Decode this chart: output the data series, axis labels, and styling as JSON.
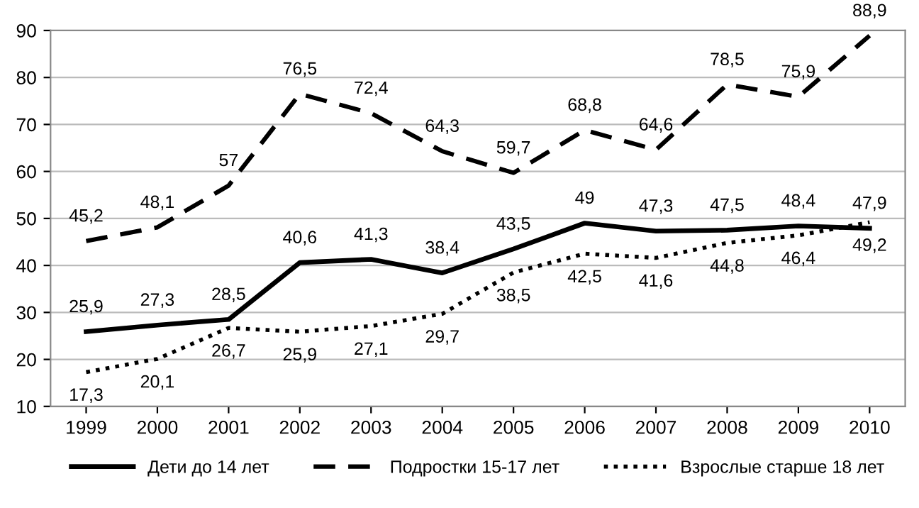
{
  "chart_data": {
    "type": "line",
    "categories": [
      "1999",
      "2000",
      "2001",
      "2002",
      "2003",
      "2004",
      "2005",
      "2006",
      "2007",
      "2008",
      "2009",
      "2010"
    ],
    "ylim": [
      10,
      90
    ],
    "yticks": [
      10,
      20,
      30,
      40,
      50,
      60,
      70,
      80,
      90
    ],
    "grid": "y",
    "legend": "bottom",
    "marker": "none",
    "series": [
      {
        "name": "Дети до 14 лет",
        "color": "#000000",
        "line_style": "solid",
        "values": [
          25.9,
          27.3,
          28.5,
          40.6,
          41.3,
          38.4,
          43.5,
          49,
          47.3,
          47.5,
          48.4,
          47.9
        ],
        "value_labels": [
          "25,9",
          "27,3",
          "28,5",
          "40,6",
          "41,3",
          "38,4",
          "43,5",
          "49",
          "47,3",
          "47,5",
          "48,4",
          "47,9"
        ]
      },
      {
        "name": "Подростки 15-17 лет",
        "color": "#000000",
        "line_style": "dashed",
        "values": [
          45.2,
          48.1,
          57,
          76.5,
          72.4,
          64.3,
          59.7,
          68.8,
          64.6,
          78.5,
          75.9,
          88.9
        ],
        "value_labels": [
          "45,2",
          "48,1",
          "57",
          "76,5",
          "72,4",
          "64,3",
          "59,7",
          "68,8",
          "64,6",
          "78,5",
          "75,9",
          "88,9"
        ]
      },
      {
        "name": "Взрослые старше 18 лет",
        "color": "#000000",
        "line_style": "dotted",
        "values": [
          17.3,
          20.1,
          26.7,
          25.9,
          27.1,
          29.7,
          38.5,
          42.5,
          41.6,
          44.8,
          46.4,
          49.2
        ],
        "value_labels": [
          "17,3",
          "20,1",
          "26,7",
          "25,9",
          "27,1",
          "29,7",
          "38,5",
          "42,5",
          "41,6",
          "44,8",
          "46,4",
          "49,2"
        ]
      }
    ]
  }
}
